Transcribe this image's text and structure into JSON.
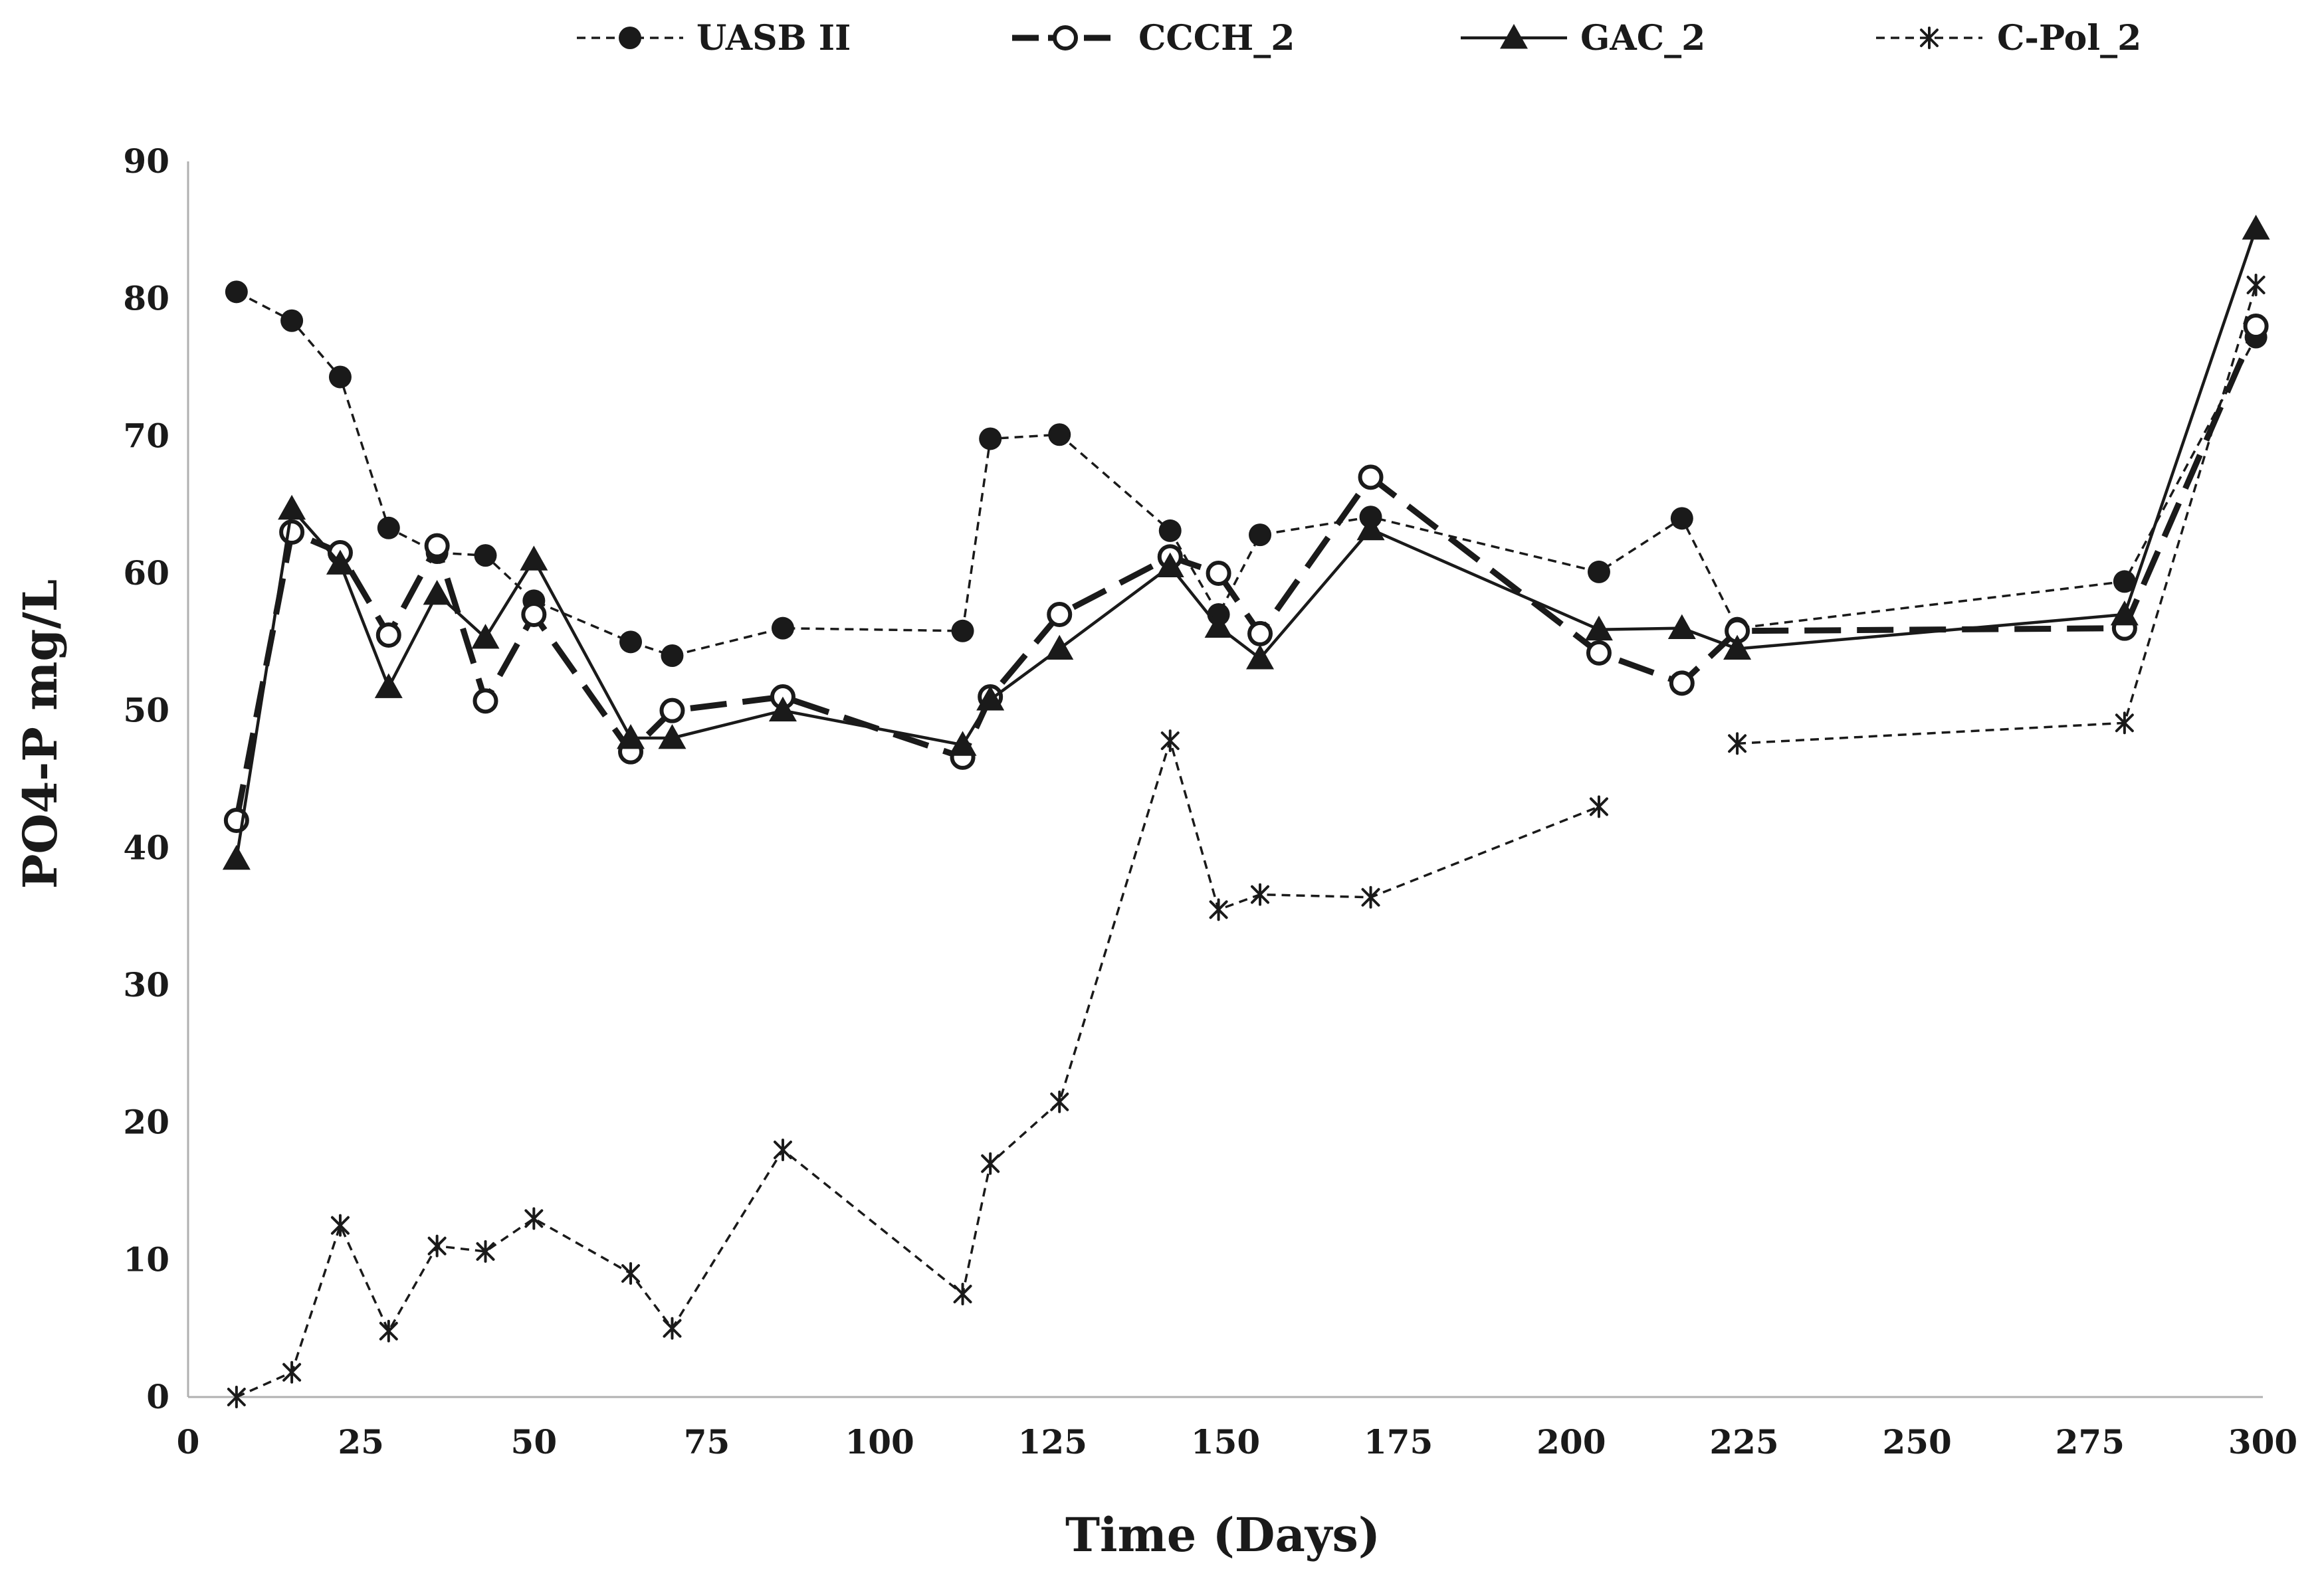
{
  "chart_data": {
    "type": "line",
    "title": "",
    "xlabel": "Time (Days)",
    "ylabel": "PO4-P mg/L",
    "xlim": [
      0,
      300
    ],
    "ylim": [
      0,
      90
    ],
    "xticks": [
      0,
      25,
      50,
      75,
      100,
      125,
      150,
      175,
      200,
      225,
      250,
      275,
      300
    ],
    "yticks": [
      0,
      10,
      20,
      30,
      40,
      50,
      60,
      70,
      80,
      90
    ],
    "grid": false,
    "legend_position": "top",
    "series": [
      {
        "name": "UASB II",
        "line": "short-dash",
        "marker": "filled-circle",
        "points": [
          [
            7,
            80.5
          ],
          [
            15,
            78.4
          ],
          [
            22,
            74.3
          ],
          [
            29,
            63.3
          ],
          [
            36,
            61.5
          ],
          [
            43,
            61.3
          ],
          [
            50,
            58
          ],
          [
            64,
            55
          ],
          [
            70,
            54
          ],
          [
            86,
            56
          ],
          [
            112,
            55.8
          ],
          [
            116,
            69.8
          ],
          [
            126,
            70.1
          ],
          [
            142,
            63.1
          ],
          [
            149,
            57
          ],
          [
            155,
            62.8
          ],
          [
            171,
            64.1
          ],
          [
            204,
            60.1
          ],
          [
            216,
            64
          ],
          [
            224,
            56
          ],
          [
            280,
            59.4
          ],
          [
            299,
            77.2
          ]
        ]
      },
      {
        "name": "CCCH_2",
        "line": "long-dash",
        "marker": "open-circle",
        "points": [
          [
            7,
            42
          ],
          [
            15,
            63
          ],
          [
            22,
            61.5
          ],
          [
            29,
            55.5
          ],
          [
            36,
            62
          ],
          [
            43,
            50.7
          ],
          [
            50,
            57
          ],
          [
            64,
            47
          ],
          [
            70,
            50
          ],
          [
            86,
            51
          ],
          [
            112,
            46.6
          ],
          [
            116,
            51
          ],
          [
            126,
            57
          ],
          [
            142,
            61.2
          ],
          [
            149,
            60
          ],
          [
            155,
            55.6
          ],
          [
            171,
            67
          ],
          [
            204,
            54.2
          ],
          [
            216,
            52
          ],
          [
            224,
            55.8
          ],
          [
            280,
            56
          ],
          [
            299,
            78
          ]
        ]
      },
      {
        "name": "GAC_2",
        "line": "solid",
        "marker": "filled-triangle",
        "points": [
          [
            7,
            39.2
          ],
          [
            15,
            64.7
          ],
          [
            22,
            60.7
          ],
          [
            29,
            51.7
          ],
          [
            36,
            58.5
          ],
          [
            43,
            55.3
          ],
          [
            50,
            61
          ],
          [
            64,
            48
          ],
          [
            70,
            48
          ],
          [
            86,
            50
          ],
          [
            112,
            47.5
          ],
          [
            116,
            50.8
          ],
          [
            126,
            54.5
          ],
          [
            142,
            60.5
          ],
          [
            149,
            56.1
          ],
          [
            155,
            53.8
          ],
          [
            171,
            63.2
          ],
          [
            204,
            55.9
          ],
          [
            216,
            56
          ],
          [
            224,
            54.5
          ],
          [
            280,
            57
          ],
          [
            299,
            85.1
          ]
        ]
      },
      {
        "name": "C-Pol_2",
        "line": "short-dash",
        "marker": "asterisk",
        "points": [
          [
            7,
            0
          ],
          [
            15,
            1.8
          ],
          [
            22,
            12.5
          ],
          [
            29,
            4.8
          ],
          [
            36,
            11
          ],
          [
            43,
            10.6
          ],
          [
            50,
            13
          ],
          [
            64,
            9
          ],
          [
            70,
            5
          ],
          [
            86,
            18
          ],
          [
            112,
            7.5
          ],
          [
            116,
            17
          ],
          [
            126,
            21.5
          ],
          [
            142,
            47.8
          ],
          [
            149,
            35.5
          ],
          [
            155,
            36.6
          ],
          [
            171,
            36.4
          ],
          [
            204,
            43
          ],
          [
            224,
            47.6
          ],
          [
            280,
            49.1
          ],
          [
            299,
            81
          ]
        ],
        "gap_after_x": 204
      }
    ]
  }
}
